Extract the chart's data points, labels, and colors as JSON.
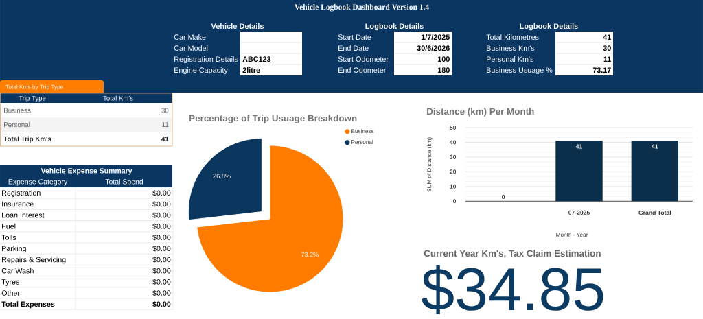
{
  "chart_data": [
    {
      "type": "other",
      "title": "Vehicle Logbook Dashboard Version 1.4"
    },
    {
      "type": "other",
      "title": "Vehicle Details",
      "categories": [
        "Car Make",
        "Car Model",
        "Registration Details",
        "Engine Capacity"
      ],
      "value_labels": [
        null,
        null,
        "ABC123",
        "2litre"
      ]
    },
    {
      "type": "other",
      "title": "Logbook Details",
      "categories": [
        "Start Date",
        "End Date",
        "Start Odometer",
        "End Odometer"
      ],
      "value_labels": [
        "1/7/2025",
        "30/6/2026",
        "100",
        "180"
      ]
    },
    {
      "type": "other",
      "title": "Logbook Details",
      "categories": [
        "Total Kilometres",
        "Business Km's",
        "Personal Km's",
        "Business Usuage %"
      ],
      "value_labels": [
        "41",
        "30",
        "11",
        "73.17"
      ]
    },
    {
      "type": "other",
      "title": "Total Kms by Trip Type",
      "annotations": [
        "Trip Type",
        "Total Km's"
      ],
      "categories": [
        "Business",
        "Personal",
        "Total Trip Km's"
      ],
      "values": [
        30,
        11,
        41
      ],
      "data_labels": true
    },
    {
      "type": "pie",
      "title": "Percentage of Trip Usuage Breakdown",
      "categories": [
        "Business",
        "Personal"
      ],
      "values": [
        73.2,
        26.8
      ],
      "colors": [
        "#ff7c00",
        "#0b365e"
      ],
      "value_labels": [
        "73.2%",
        "26.8%"
      ],
      "legend": "top right"
    },
    {
      "type": "bar",
      "title": "Distance (km) Per Month",
      "xlabel": "Month - Year",
      "ylabel": "SUM of Distance (km)",
      "categories": [
        null,
        "07-2025",
        "Grand Total"
      ],
      "values": [
        0,
        41,
        41
      ],
      "color": "#0b2f4a",
      "ylim": [
        0,
        50
      ],
      "yticks": [
        0,
        10,
        20,
        30,
        40,
        50
      ],
      "grid": "y",
      "data_labels": true
    },
    {
      "type": "other",
      "title": "Vehicle Expense Summary",
      "annotations": [
        "Expense Category",
        "Total Spend"
      ],
      "categories": [
        "Registration",
        "Insurance",
        "Loan Interest",
        "Fuel",
        "Tolls",
        "Parking",
        "Repairs & Servicing",
        "Car Wash",
        "Tyres",
        "Other",
        "Total Expenses"
      ],
      "value_labels": [
        "$0.00",
        "$0.00",
        "$0.00",
        "$0.00",
        "$0.00",
        "$0.00",
        "$0.00",
        "$0.00",
        "$0.00",
        "$0.00",
        "$0.00"
      ]
    },
    {
      "type": "other",
      "title": "Current Year Km's, Tax Claim Estimation",
      "value_labels": [
        "$34.85"
      ]
    }
  ]
}
